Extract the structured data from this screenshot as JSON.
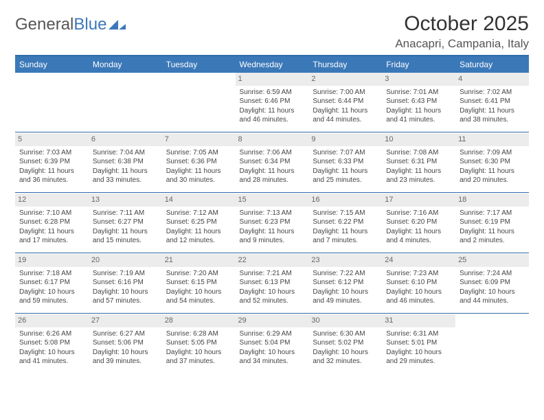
{
  "logo": {
    "text1": "General",
    "text2": "Blue"
  },
  "title": "October 2025",
  "location": "Anacapri, Campania, Italy",
  "colors": {
    "header_bar": "#3b78b8",
    "rule": "#2f6aa8",
    "daynum_bg": "#ececec",
    "text": "#333333"
  },
  "day_headers": [
    "Sunday",
    "Monday",
    "Tuesday",
    "Wednesday",
    "Thursday",
    "Friday",
    "Saturday"
  ],
  "weeks": [
    [
      null,
      null,
      null,
      {
        "n": "1",
        "sr": "6:59 AM",
        "ss": "6:46 PM",
        "dl": "11 hours and 46 minutes."
      },
      {
        "n": "2",
        "sr": "7:00 AM",
        "ss": "6:44 PM",
        "dl": "11 hours and 44 minutes."
      },
      {
        "n": "3",
        "sr": "7:01 AM",
        "ss": "6:43 PM",
        "dl": "11 hours and 41 minutes."
      },
      {
        "n": "4",
        "sr": "7:02 AM",
        "ss": "6:41 PM",
        "dl": "11 hours and 38 minutes."
      }
    ],
    [
      {
        "n": "5",
        "sr": "7:03 AM",
        "ss": "6:39 PM",
        "dl": "11 hours and 36 minutes."
      },
      {
        "n": "6",
        "sr": "7:04 AM",
        "ss": "6:38 PM",
        "dl": "11 hours and 33 minutes."
      },
      {
        "n": "7",
        "sr": "7:05 AM",
        "ss": "6:36 PM",
        "dl": "11 hours and 30 minutes."
      },
      {
        "n": "8",
        "sr": "7:06 AM",
        "ss": "6:34 PM",
        "dl": "11 hours and 28 minutes."
      },
      {
        "n": "9",
        "sr": "7:07 AM",
        "ss": "6:33 PM",
        "dl": "11 hours and 25 minutes."
      },
      {
        "n": "10",
        "sr": "7:08 AM",
        "ss": "6:31 PM",
        "dl": "11 hours and 23 minutes."
      },
      {
        "n": "11",
        "sr": "7:09 AM",
        "ss": "6:30 PM",
        "dl": "11 hours and 20 minutes."
      }
    ],
    [
      {
        "n": "12",
        "sr": "7:10 AM",
        "ss": "6:28 PM",
        "dl": "11 hours and 17 minutes."
      },
      {
        "n": "13",
        "sr": "7:11 AM",
        "ss": "6:27 PM",
        "dl": "11 hours and 15 minutes."
      },
      {
        "n": "14",
        "sr": "7:12 AM",
        "ss": "6:25 PM",
        "dl": "11 hours and 12 minutes."
      },
      {
        "n": "15",
        "sr": "7:13 AM",
        "ss": "6:23 PM",
        "dl": "11 hours and 9 minutes."
      },
      {
        "n": "16",
        "sr": "7:15 AM",
        "ss": "6:22 PM",
        "dl": "11 hours and 7 minutes."
      },
      {
        "n": "17",
        "sr": "7:16 AM",
        "ss": "6:20 PM",
        "dl": "11 hours and 4 minutes."
      },
      {
        "n": "18",
        "sr": "7:17 AM",
        "ss": "6:19 PM",
        "dl": "11 hours and 2 minutes."
      }
    ],
    [
      {
        "n": "19",
        "sr": "7:18 AM",
        "ss": "6:17 PM",
        "dl": "10 hours and 59 minutes."
      },
      {
        "n": "20",
        "sr": "7:19 AM",
        "ss": "6:16 PM",
        "dl": "10 hours and 57 minutes."
      },
      {
        "n": "21",
        "sr": "7:20 AM",
        "ss": "6:15 PM",
        "dl": "10 hours and 54 minutes."
      },
      {
        "n": "22",
        "sr": "7:21 AM",
        "ss": "6:13 PM",
        "dl": "10 hours and 52 minutes."
      },
      {
        "n": "23",
        "sr": "7:22 AM",
        "ss": "6:12 PM",
        "dl": "10 hours and 49 minutes."
      },
      {
        "n": "24",
        "sr": "7:23 AM",
        "ss": "6:10 PM",
        "dl": "10 hours and 46 minutes."
      },
      {
        "n": "25",
        "sr": "7:24 AM",
        "ss": "6:09 PM",
        "dl": "10 hours and 44 minutes."
      }
    ],
    [
      {
        "n": "26",
        "sr": "6:26 AM",
        "ss": "5:08 PM",
        "dl": "10 hours and 41 minutes."
      },
      {
        "n": "27",
        "sr": "6:27 AM",
        "ss": "5:06 PM",
        "dl": "10 hours and 39 minutes."
      },
      {
        "n": "28",
        "sr": "6:28 AM",
        "ss": "5:05 PM",
        "dl": "10 hours and 37 minutes."
      },
      {
        "n": "29",
        "sr": "6:29 AM",
        "ss": "5:04 PM",
        "dl": "10 hours and 34 minutes."
      },
      {
        "n": "30",
        "sr": "6:30 AM",
        "ss": "5:02 PM",
        "dl": "10 hours and 32 minutes."
      },
      {
        "n": "31",
        "sr": "6:31 AM",
        "ss": "5:01 PM",
        "dl": "10 hours and 29 minutes."
      },
      null
    ]
  ],
  "labels": {
    "sunrise": "Sunrise:",
    "sunset": "Sunset:",
    "daylight": "Daylight:"
  }
}
